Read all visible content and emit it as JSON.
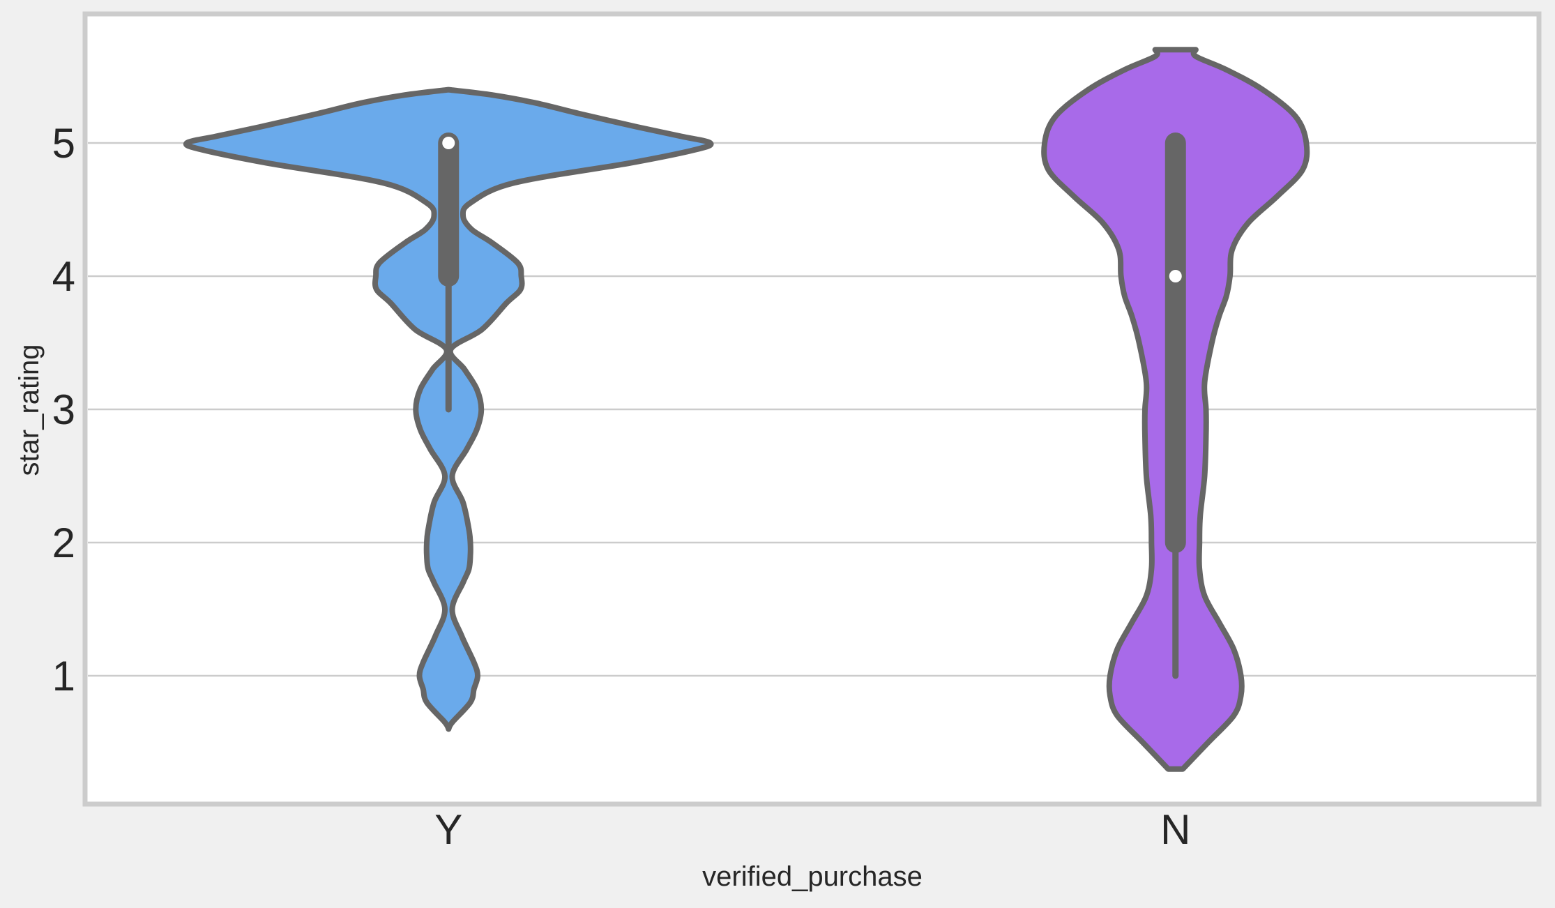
{
  "chart_data": {
    "type": "violin",
    "title": "",
    "xlabel": "verified_purchase",
    "ylabel": "star_rating",
    "categories": [
      "Y",
      "N"
    ],
    "ylim": [
      0.0,
      5.98
    ],
    "yticks": [
      1,
      2,
      3,
      4,
      5
    ],
    "grid": "horizontal",
    "legend": "none",
    "colors": {
      "Y": "#6aaaeb",
      "N": "#a86ae9",
      "outline": "#666666",
      "median_marker": "#ffffff",
      "grid": "#cccccc",
      "frame": "#cccccc",
      "background": "#f0f0f0",
      "plot_background": "#ffffff"
    },
    "violins": [
      {
        "category": "Y",
        "color": "#6aaaeb",
        "density_range": [
          0.6,
          5.4
        ],
        "max_half_width": 0.4,
        "density": [
          [
            0.6,
            0.0
          ],
          [
            0.65,
            0.005
          ],
          [
            0.8,
            0.03
          ],
          [
            0.9,
            0.035
          ],
          [
            1.0,
            0.04
          ],
          [
            1.1,
            0.035
          ],
          [
            1.3,
            0.018
          ],
          [
            1.5,
            0.005
          ],
          [
            1.7,
            0.02
          ],
          [
            1.8,
            0.028
          ],
          [
            1.9,
            0.03
          ],
          [
            2.0,
            0.03
          ],
          [
            2.1,
            0.028
          ],
          [
            2.3,
            0.02
          ],
          [
            2.5,
            0.005
          ],
          [
            2.7,
            0.025
          ],
          [
            2.85,
            0.039
          ],
          [
            3.0,
            0.045
          ],
          [
            3.15,
            0.039
          ],
          [
            3.3,
            0.022
          ],
          [
            3.45,
            0.003
          ],
          [
            3.6,
            0.046
          ],
          [
            3.8,
            0.08
          ],
          [
            3.9,
            0.099
          ],
          [
            4.0,
            0.1
          ],
          [
            4.1,
            0.095
          ],
          [
            4.25,
            0.06
          ],
          [
            4.35,
            0.032
          ],
          [
            4.45,
            0.02
          ],
          [
            4.55,
            0.03
          ],
          [
            4.7,
            0.09
          ],
          [
            4.85,
            0.25
          ],
          [
            4.95,
            0.34
          ],
          [
            5.0,
            0.36
          ],
          [
            5.05,
            0.32
          ],
          [
            5.12,
            0.26
          ],
          [
            5.22,
            0.18
          ],
          [
            5.3,
            0.12
          ],
          [
            5.36,
            0.06
          ],
          [
            5.4,
            0.0
          ]
        ],
        "quartiles": [
          4.0,
          5.0
        ],
        "median": 5.0,
        "whiskers": [
          3.0,
          5.0
        ]
      },
      {
        "category": "N",
        "color": "#a86ae9",
        "density_range": [
          0.3,
          5.7
        ],
        "max_half_width": 0.18,
        "density": [
          [
            0.3,
            0.01
          ],
          [
            0.5,
            0.045
          ],
          [
            0.7,
            0.08
          ],
          [
            0.85,
            0.09
          ],
          [
            1.0,
            0.09
          ],
          [
            1.2,
            0.08
          ],
          [
            1.4,
            0.06
          ],
          [
            1.6,
            0.04
          ],
          [
            1.8,
            0.033
          ],
          [
            2.0,
            0.033
          ],
          [
            2.2,
            0.034
          ],
          [
            2.5,
            0.04
          ],
          [
            2.8,
            0.042
          ],
          [
            3.0,
            0.042
          ],
          [
            3.2,
            0.04
          ],
          [
            3.5,
            0.05
          ],
          [
            3.7,
            0.06
          ],
          [
            3.85,
            0.07
          ],
          [
            4.0,
            0.075
          ],
          [
            4.2,
            0.078
          ],
          [
            4.4,
            0.1
          ],
          [
            4.6,
            0.14
          ],
          [
            4.8,
            0.175
          ],
          [
            5.0,
            0.18
          ],
          [
            5.2,
            0.165
          ],
          [
            5.4,
            0.12
          ],
          [
            5.55,
            0.07
          ],
          [
            5.65,
            0.028
          ],
          [
            5.7,
            0.028
          ]
        ],
        "quartiles": [
          2.0,
          5.0
        ],
        "median": 4.0,
        "whiskers": [
          1.0,
          5.0
        ]
      }
    ]
  }
}
